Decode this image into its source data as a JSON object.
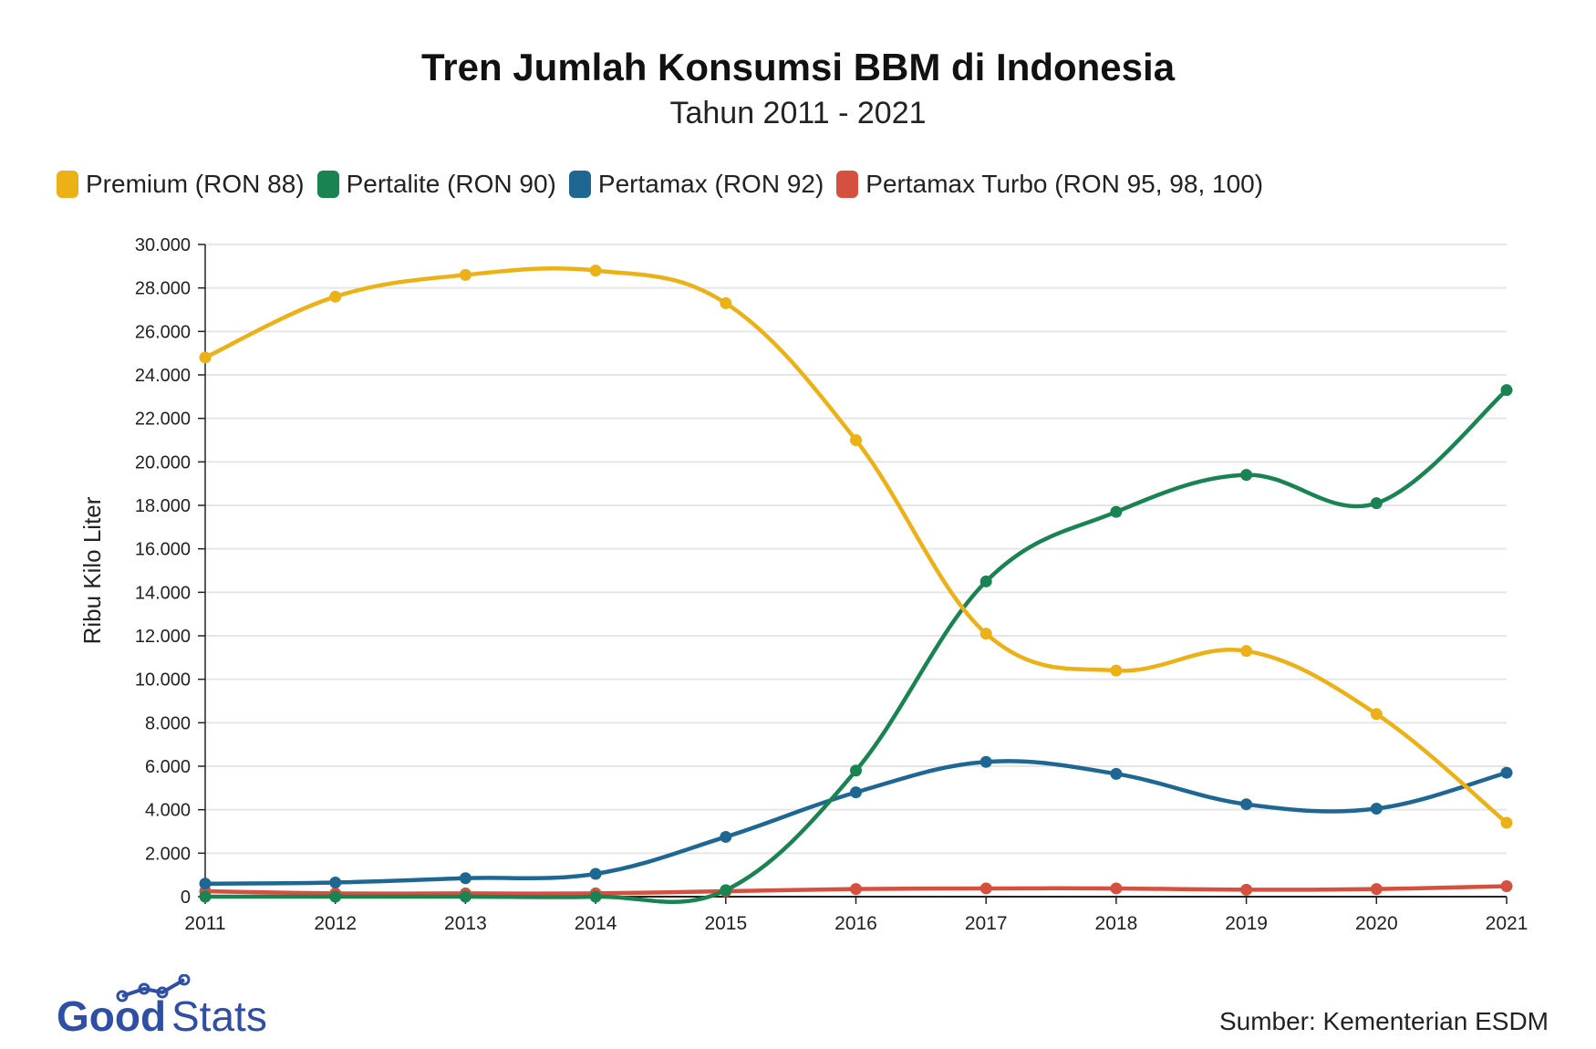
{
  "title": "Tren Jumlah Konsumsi BBM di Indonesia",
  "subtitle": "Tahun 2011 - 2021",
  "source": "Sumber: Kementerian ESDM",
  "logo": {
    "good": "Good",
    "stats": "Stats"
  },
  "colors": {
    "premium": "#EBB117",
    "pertalite": "#198452",
    "pertamax": "#1F6793",
    "turbo": "#D5503F",
    "grid": "#e6e6e6",
    "axis": "#222222",
    "logo_blue": "#2E4FA3"
  },
  "chart_data": {
    "type": "line",
    "smooth": true,
    "x": [
      "2011",
      "2012",
      "2013",
      "2014",
      "2015",
      "2016",
      "2017",
      "2018",
      "2019",
      "2020",
      "2021"
    ],
    "ylabel": "Ribu Kilo Liter",
    "ylim": [
      0,
      30000
    ],
    "yticks": [
      0,
      2000,
      4000,
      6000,
      8000,
      10000,
      12000,
      14000,
      16000,
      18000,
      20000,
      22000,
      24000,
      26000,
      28000,
      30000
    ],
    "ytick_labels": [
      "0",
      "2.000",
      "4.000",
      "6.000",
      "8.000",
      "10.000",
      "12.000",
      "14.000",
      "16.000",
      "18.000",
      "20.000",
      "22.000",
      "24.000",
      "26.000",
      "28.000",
      "30.000"
    ],
    "grid": true,
    "legend_position": "top-left",
    "series": [
      {
        "name": "Premium (RON 88)",
        "color_key": "premium",
        "values": [
          24800,
          27600,
          28600,
          28800,
          27300,
          21000,
          12100,
          10400,
          11300,
          8400,
          3400
        ]
      },
      {
        "name": "Pertalite (RON 90)",
        "color_key": "pertalite",
        "values": [
          0,
          0,
          0,
          0,
          300,
          5800,
          14500,
          17700,
          19400,
          18100,
          23300
        ]
      },
      {
        "name": "Pertamax (RON 92)",
        "color_key": "pertamax",
        "values": [
          600,
          650,
          850,
          1050,
          2750,
          4800,
          6200,
          5650,
          4250,
          4050,
          5700
        ]
      },
      {
        "name": "Pertamax Turbo (RON 95, 98, 100)",
        "color_key": "turbo",
        "values": [
          250,
          150,
          150,
          150,
          250,
          350,
          380,
          380,
          320,
          350,
          480
        ]
      }
    ]
  }
}
